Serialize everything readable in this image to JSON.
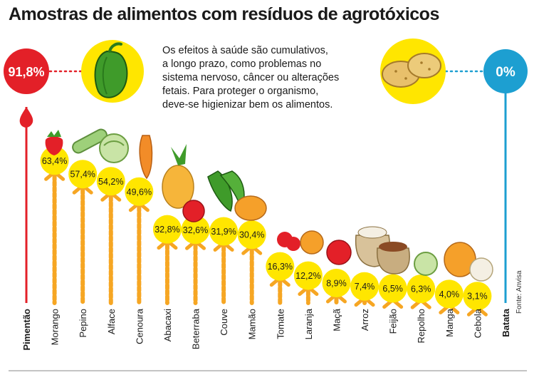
{
  "title": "Amostras de alimentos com resíduos de agrotóxicos",
  "description": [
    "Os efeitos à saúde são cumulativos,",
    "a longo prazo, como problemas no",
    "sistema nervoso, câncer ou alterações",
    "fetais. Para proteger o organismo,",
    "deve-se higienizar bem os alimentos."
  ],
  "source": "Fonte: Anvisa",
  "colors": {
    "max": "#e32028",
    "min": "#1d9fd1",
    "drip": "#f6a623",
    "bubble": "#ffe600",
    "text": "#1a1a1a"
  },
  "icons": [
    "pepper-icon",
    "potato-icon",
    "fruit-vegetable-icons"
  ],
  "chart_data": {
    "type": "bar",
    "title": "Amostras de alimentos com resíduos de agrotóxicos",
    "xlabel": "",
    "ylabel": "",
    "unit": "%",
    "categories": [
      "Pimentão",
      "Morango",
      "Pepino",
      "Alface",
      "Cenoura",
      "Abacaxi",
      "Beterraba",
      "Couve",
      "Mamão",
      "Tomate",
      "Laranja",
      "Maçã",
      "Arroz",
      "Feijão",
      "Repolho",
      "Manga",
      "Cebola",
      "Batata"
    ],
    "labels": [
      "91,8%",
      "63,4%",
      "57,4%",
      "54,2%",
      "49,6%",
      "32,8%",
      "32,6%",
      "31,9%",
      "30,4%",
      "16,3%",
      "12,2%",
      "8,9%",
      "7,4%",
      "6,5%",
      "6,3%",
      "4,0%",
      "3,1%",
      "0%"
    ],
    "values": [
      91.8,
      63.4,
      57.4,
      54.2,
      49.6,
      32.8,
      32.6,
      31.9,
      30.4,
      16.3,
      12.2,
      8.9,
      7.4,
      6.5,
      6.3,
      4.0,
      3.1,
      0
    ],
    "ylim": [
      0,
      100
    ],
    "grid": false,
    "legend": "none"
  }
}
